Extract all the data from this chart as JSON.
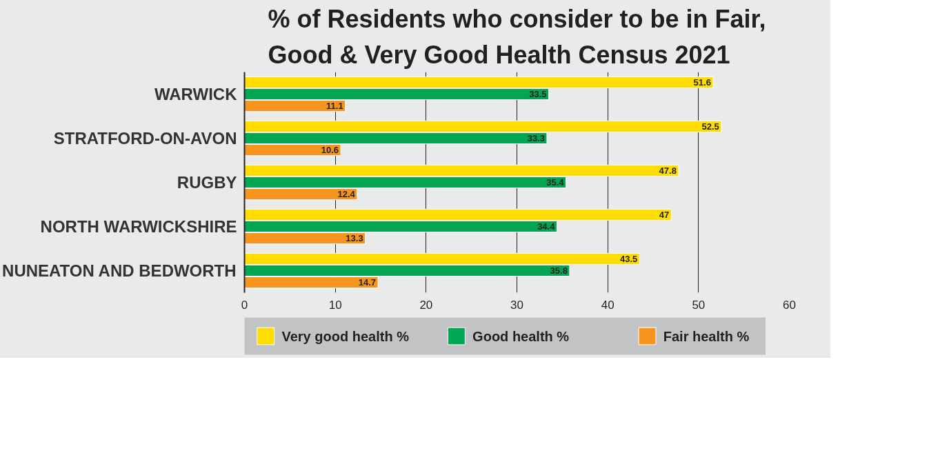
{
  "chart_data": {
    "type": "bar",
    "orientation": "horizontal",
    "title": "% of Residents who consider to be in Fair, Good & Very Good Health Census 2021",
    "categories": [
      "WARWICK",
      "STRATFORD-ON-AVON",
      "RUGBY",
      "NORTH WARWICKSHIRE",
      "NUNEATON AND BEDWORTH"
    ],
    "series": [
      {
        "name": "Very good health %",
        "color": "#ffdd00",
        "values": [
          51.6,
          52.5,
          47.8,
          47,
          43.5
        ]
      },
      {
        "name": "Good health %",
        "color": "#00a651",
        "values": [
          33.5,
          33.3,
          35.4,
          34.4,
          35.8
        ]
      },
      {
        "name": "Fair health %",
        "color": "#f7941d",
        "values": [
          11.1,
          10.6,
          12.4,
          13.3,
          14.7
        ]
      }
    ],
    "xlim": [
      0,
      60
    ],
    "xticks": [
      0,
      10,
      20,
      30,
      40,
      50,
      60
    ],
    "grid": "x",
    "legend": "bottom",
    "data_labels": true
  }
}
